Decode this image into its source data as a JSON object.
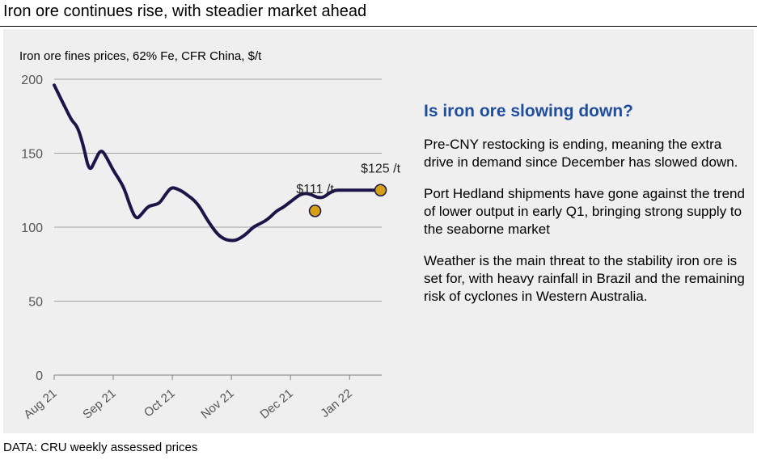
{
  "header": {
    "title": "Iron ore continues rise, with steadier market ahead"
  },
  "sidebar": {
    "heading": "Is iron ore slowing down?",
    "paragraphs": [
      "Pre-CNY restocking is ending, meaning the extra drive in demand since December has slowed down.",
      "Port Hedland shipments have gone against the trend of lower output in early Q1, bringing strong supply to the seaborne market",
      "Weather is the main threat to the stability iron ore is set for, with heavy rainfall in Brazil and the remaining risk of cyclones in Western Australia."
    ]
  },
  "footer": {
    "source": "DATA: CRU weekly assessed prices"
  },
  "colors": {
    "line": "#1c1547",
    "marker": "#d4a017",
    "heading": "#1f4e9c",
    "grid": "#a0a0a0",
    "panel": "#efefef"
  },
  "chart_data": {
    "type": "line",
    "title": "Iron ore fines prices, 62% Fe, CFR China, $/t",
    "xlabel": "",
    "ylabel": "$/t",
    "ylim": [
      0,
      200
    ],
    "yticks": [
      0,
      50,
      100,
      150,
      200
    ],
    "x_tick_labels": [
      "Aug 21",
      "Sep 21",
      "Oct 21",
      "Nov 21",
      "Dec 21",
      "Jan 22"
    ],
    "grid": true,
    "series": [
      {
        "name": "Iron ore fines 62% Fe CFR China",
        "week": [
          0,
          0.5,
          1,
          1.5,
          2,
          2.5,
          3,
          3.5,
          4,
          4.5,
          5,
          5.5,
          6,
          6.5,
          7,
          7.5,
          8,
          8.5,
          9,
          9.5,
          10,
          10.5,
          11,
          11.5,
          12,
          12.5,
          13,
          13.5,
          14,
          14.5,
          15,
          15.5,
          16,
          16.5,
          17,
          17.5,
          18,
          18.5,
          19,
          19.5,
          20,
          20.5,
          21,
          21.5,
          22,
          22.5,
          23,
          23.5,
          24,
          24.5,
          25,
          25.5,
          26,
          26.5,
          27,
          27.5,
          28
        ],
        "values": [
          196,
          188,
          180,
          172,
          168,
          155,
          137,
          145,
          153,
          147,
          139,
          133,
          126,
          114,
          105,
          109,
          114,
          115,
          116,
          122,
          127,
          126,
          124,
          121,
          118,
          113,
          106,
          100,
          95,
          92,
          91,
          91,
          93,
          96,
          100,
          102,
          104,
          107,
          111,
          113,
          116,
          119,
          122,
          123,
          122,
          120,
          120,
          123,
          125,
          125,
          125,
          125,
          125,
          125,
          125,
          125,
          125
        ],
        "x_max": 28
      }
    ],
    "annotations": [
      {
        "label": "$111 /t",
        "week": 22.3,
        "value": 111
      },
      {
        "label": "$125 /t",
        "week": 27.9,
        "value": 125
      }
    ]
  }
}
